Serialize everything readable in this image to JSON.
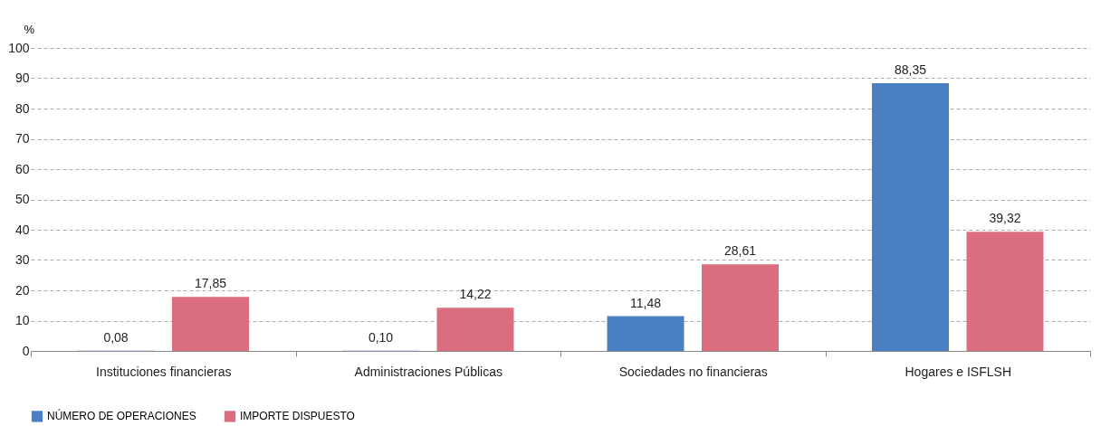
{
  "chart_data": {
    "type": "bar",
    "ylabel": "%",
    "categories": [
      "Instituciones financieras",
      "Administraciones Públicas",
      "Sociedades no financieras",
      "Hogares e ISFLSH"
    ],
    "series": [
      {
        "name": "NÚMERO DE OPERACIONES",
        "color": "#4a7fc1",
        "values": [
          0.08,
          0.1,
          11.48,
          88.35
        ],
        "value_labels": [
          "0,08",
          "0,10",
          "11,48",
          "88,35"
        ]
      },
      {
        "name": "IMPORTE DISPUESTO",
        "color": "#db6e7e",
        "values": [
          17.85,
          14.22,
          28.61,
          39.32
        ],
        "value_labels": [
          "17,85",
          "14,22",
          "28,61",
          "39,32"
        ]
      }
    ],
    "ylim": [
      0,
      100
    ],
    "yticks": [
      0,
      10,
      20,
      30,
      40,
      50,
      60,
      70,
      80,
      90,
      100
    ],
    "grid": "y",
    "legend": "bottom left"
  }
}
